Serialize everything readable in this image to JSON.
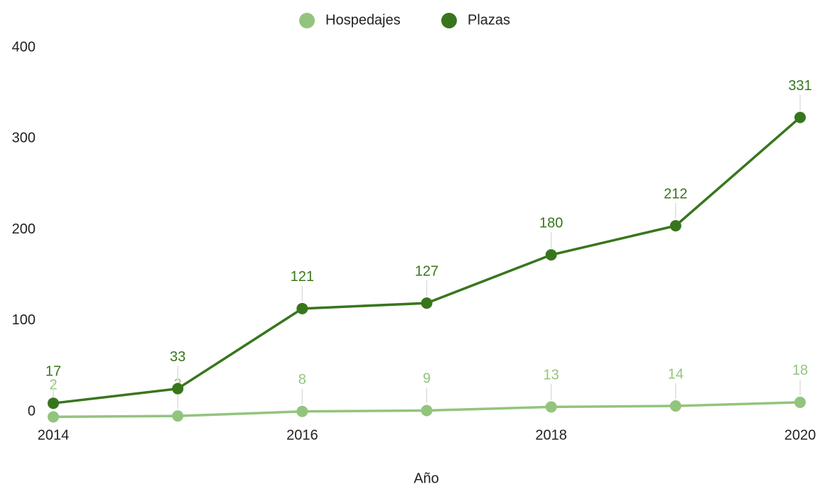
{
  "chart_data": {
    "type": "line",
    "x": [
      2014,
      2015,
      2016,
      2017,
      2018,
      2019,
      2020
    ],
    "series": [
      {
        "name": "Hospedajes",
        "color": "#93c47d",
        "values": [
          2,
          3,
          8,
          9,
          13,
          14,
          18
        ]
      },
      {
        "name": "Plazas",
        "color": "#38761d",
        "values": [
          17,
          33,
          121,
          127,
          180,
          212,
          331
        ]
      }
    ],
    "xlabel": "Año",
    "xlim": [
      2014,
      2020
    ],
    "xticks": [
      2014,
      2016,
      2018,
      2020
    ],
    "ylim": [
      0,
      400
    ],
    "yticks": [
      0,
      100,
      200,
      300,
      400
    ],
    "grid": false,
    "legend": "top"
  }
}
